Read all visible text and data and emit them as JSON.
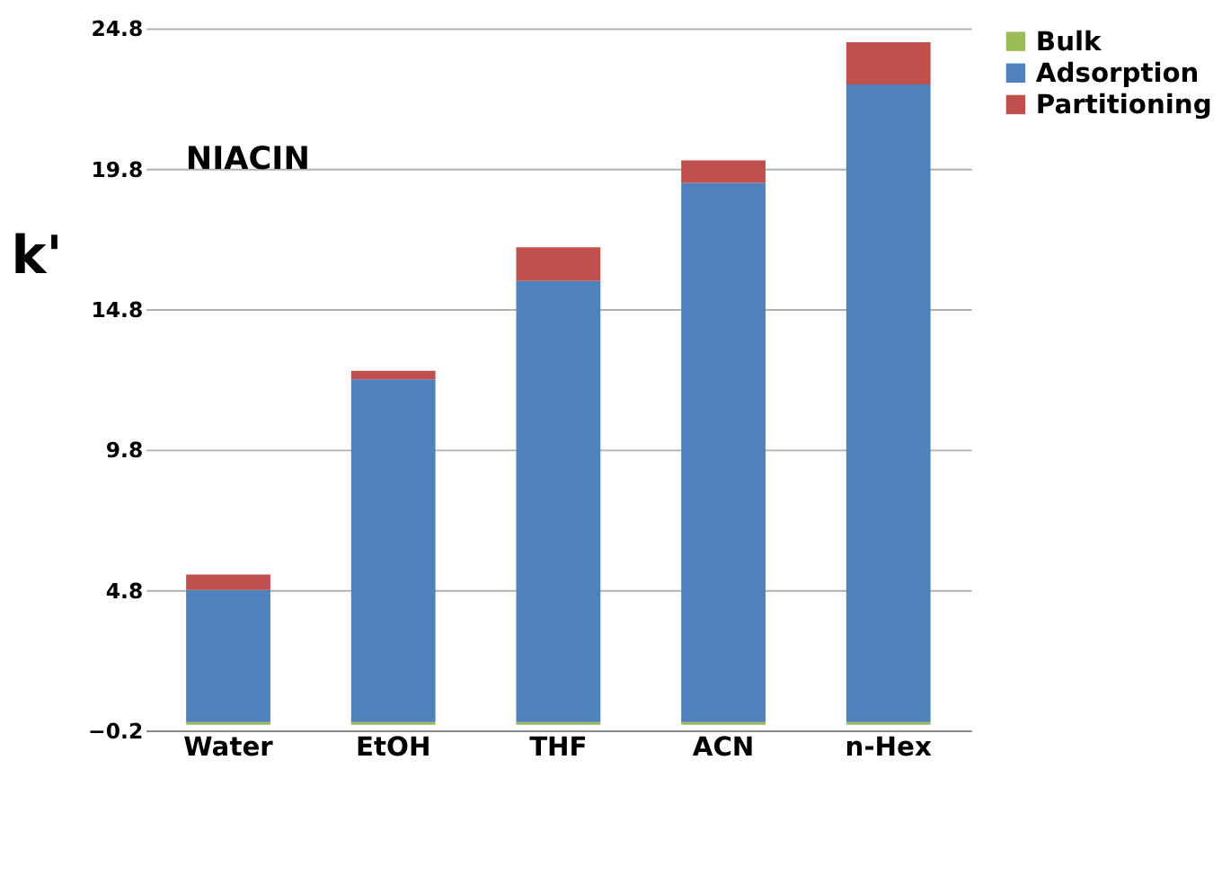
{
  "chart_data": {
    "type": "bar",
    "title": "NIACIN",
    "ylabel": "k'",
    "categories": [
      "Water",
      "EtOH",
      "THF",
      "ACN",
      "n-Hex"
    ],
    "stacked": true,
    "series": [
      {
        "name": "Bulk",
        "color": "#9bbb59",
        "values": [
          0.1,
          0.1,
          0.1,
          0.1,
          0.1
        ]
      },
      {
        "name": "Adsorption",
        "color": "#4f81bd",
        "values": [
          4.7,
          12.2,
          15.7,
          19.2,
          22.7
        ]
      },
      {
        "name": "Partitioning",
        "color": "#c0504d",
        "values": [
          0.55,
          0.3,
          1.2,
          0.8,
          1.5
        ]
      }
    ],
    "ylim": [
      -0.2,
      24.8
    ],
    "yticks": [
      -0.2,
      4.8,
      9.8,
      14.8,
      19.8,
      24.8
    ],
    "grid": "y",
    "legend": "right"
  }
}
